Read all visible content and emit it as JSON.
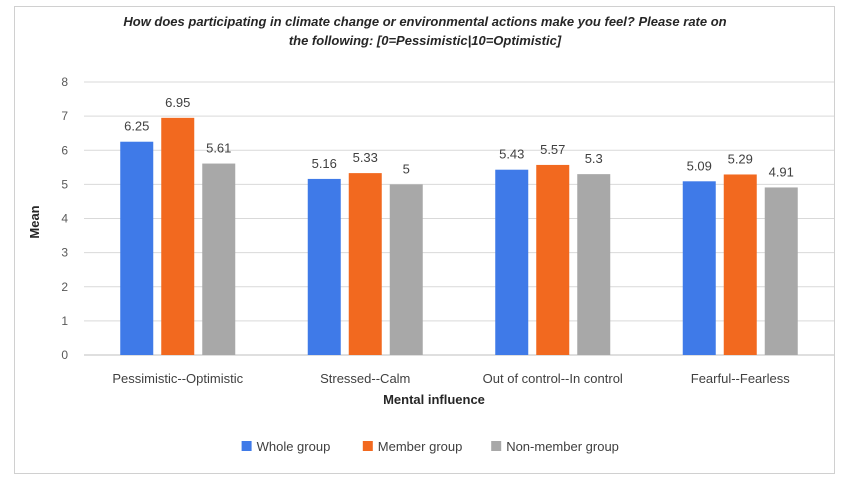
{
  "chart_data": {
    "type": "bar",
    "title_lines": [
      "How does participating  in climate change or environmental actions make you feel? Please rate on",
      "the following: [0=Pessimistic|10=Optimistic]"
    ],
    "xlabel": "Mental influence",
    "ylabel": "Mean",
    "ylim": [
      0,
      8
    ],
    "yticks": [
      0,
      1,
      2,
      3,
      4,
      5,
      6,
      7,
      8
    ],
    "grid": true,
    "legend_position": "bottom",
    "categories": [
      "Pessimistic--Optimistic",
      "Stressed--Calm",
      "Out of control--In control",
      "Fearful--Fearless"
    ],
    "series": [
      {
        "name": "Whole group",
        "color": "#3f7ae8",
        "values": [
          6.25,
          5.16,
          5.43,
          5.09
        ]
      },
      {
        "name": "Member group",
        "color": "#f2691f",
        "values": [
          6.95,
          5.33,
          5.57,
          5.29
        ]
      },
      {
        "name": "Non-member group",
        "color": "#a8a8a8",
        "values": [
          5.61,
          5,
          5.3,
          4.91
        ]
      }
    ]
  }
}
